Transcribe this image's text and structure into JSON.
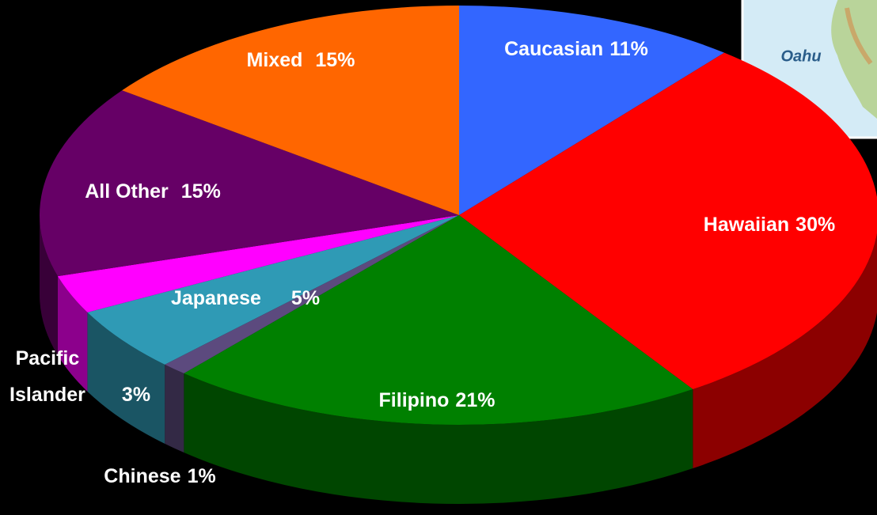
{
  "chart_data": {
    "type": "pie",
    "categories": [
      "Caucasian",
      "Hawaiian",
      "Filipino",
      "Chinese",
      "Japanese",
      "Pacific Islander",
      "All Other",
      "Mixed"
    ],
    "values": [
      11,
      30,
      21,
      1,
      5,
      3,
      15,
      15
    ],
    "value_labels": [
      "11%",
      "30%",
      "21%",
      "1%",
      "5%",
      "3%",
      "15%",
      "15%"
    ],
    "colors": [
      "#3366ff",
      "#ff0000",
      "#008000",
      "#5c4a7e",
      "#2f9ab5",
      "#ff00ff",
      "#660066",
      "#ff6600"
    ]
  },
  "map_inset": {
    "label": "Oahu"
  }
}
